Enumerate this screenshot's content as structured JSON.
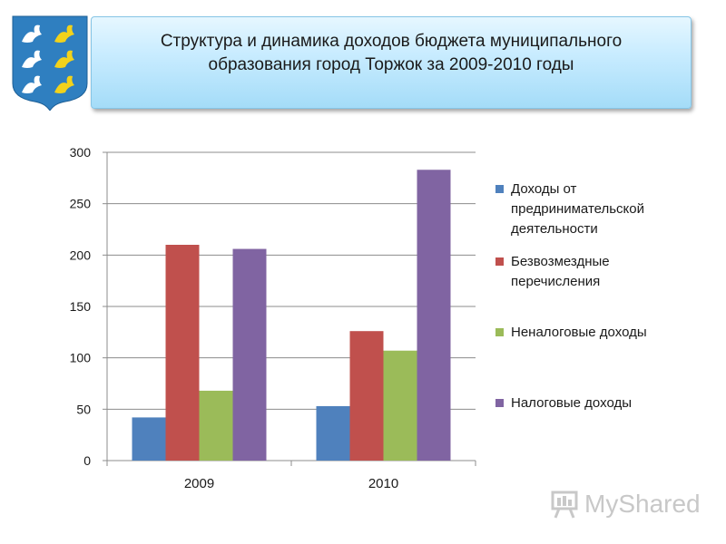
{
  "header": {
    "title": "Структура и динамика доходов бюджета муниципального образования город Торжок за 2009-2010 годы"
  },
  "watermark": {
    "text": "MyShared"
  },
  "chart_data": {
    "type": "bar",
    "categories": [
      "2009",
      "2010"
    ],
    "ylim": [
      0,
      300
    ],
    "yticks": [
      "0",
      "50",
      "100",
      "150",
      "200",
      "250",
      "300"
    ],
    "grid": true,
    "legend_position": "right",
    "series": [
      {
        "name": "Доходы от предринимательской деятельности",
        "color": "#4f81bd",
        "values": [
          42,
          53
        ]
      },
      {
        "name": "Безвозмездные перечисления",
        "color": "#c0504d",
        "values": [
          210,
          126
        ]
      },
      {
        "name": "Неналоговые доходы",
        "color": "#9bbb59",
        "values": [
          68,
          107
        ]
      },
      {
        "name": "Налоговые доходы",
        "color": "#8064a2",
        "values": [
          206,
          283
        ]
      }
    ]
  }
}
